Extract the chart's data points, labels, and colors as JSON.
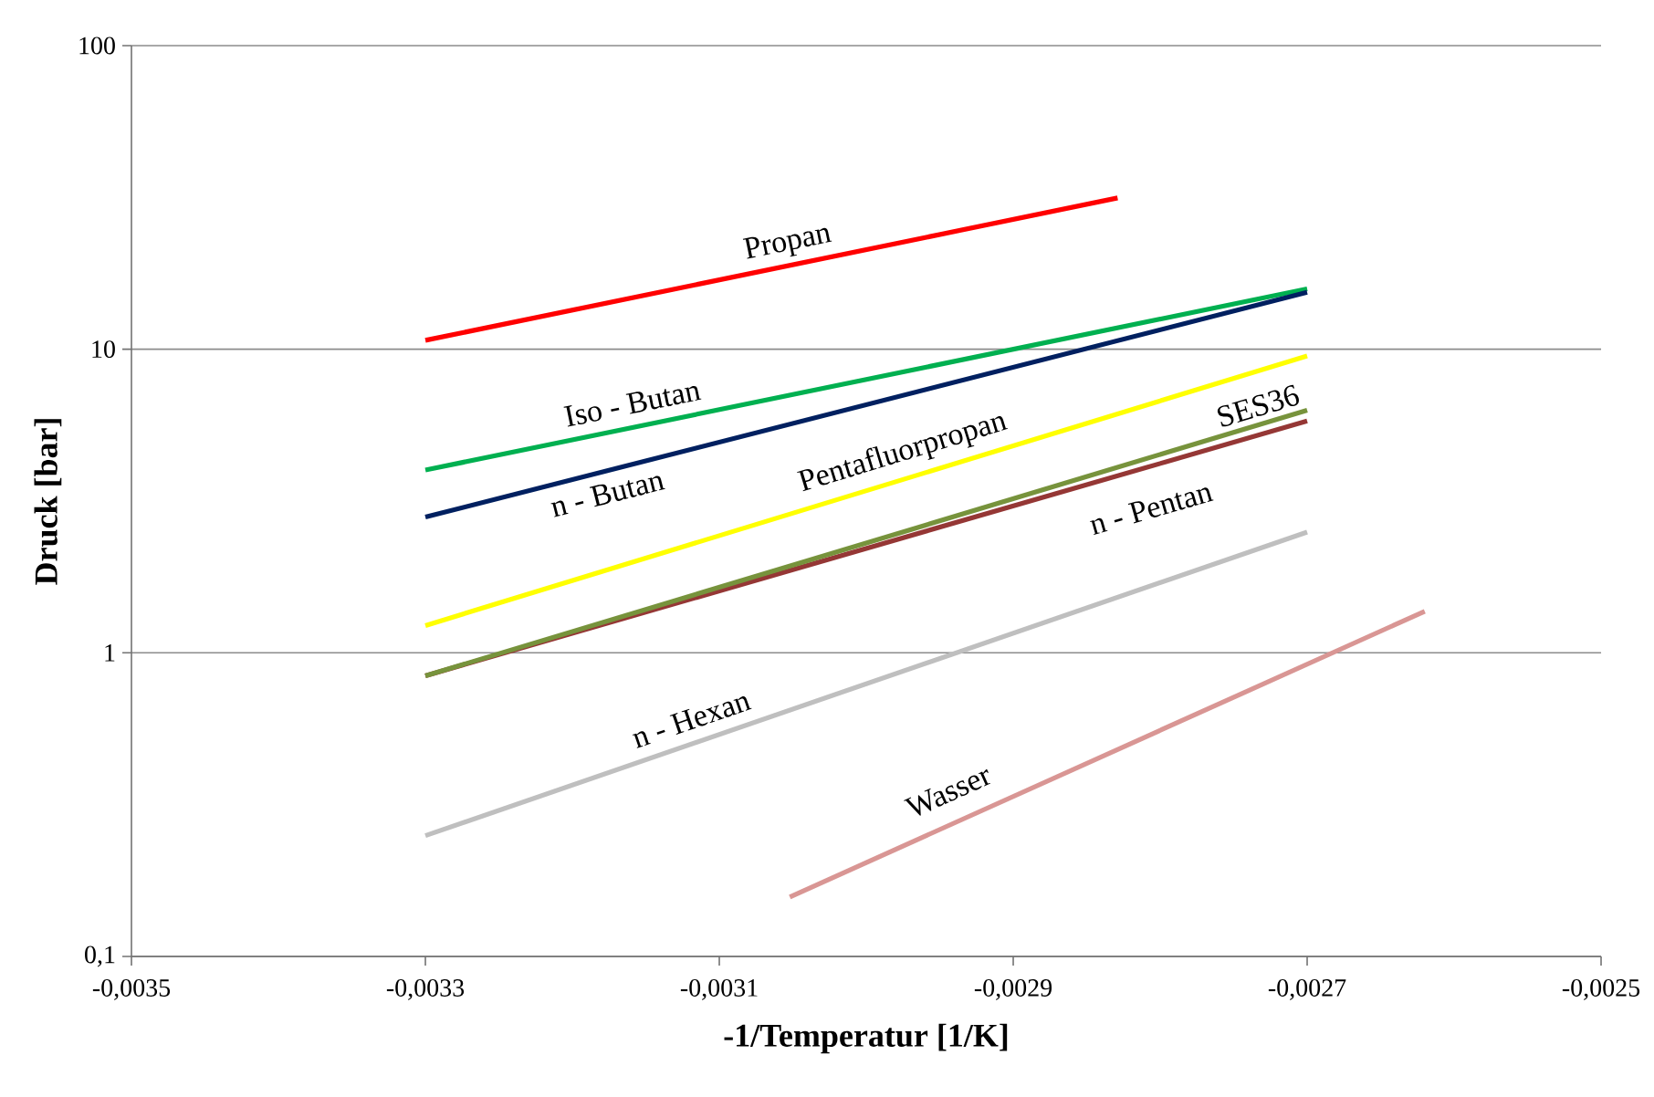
{
  "chart_data": {
    "type": "line",
    "xlabel": "-1/Temperatur [1/K]",
    "ylabel": "Druck [bar]",
    "log": "y",
    "grid": "y",
    "legend": false,
    "marker": "none",
    "line_style": "solid",
    "xlim": [
      -0.0035,
      -0.0025
    ],
    "xticks": [
      {
        "value": -0.0035,
        "label": "-0,0035"
      },
      {
        "value": -0.0033,
        "label": "-0,0033"
      },
      {
        "value": -0.0031,
        "label": "-0,0031"
      },
      {
        "value": -0.0029,
        "label": "-0,0029"
      },
      {
        "value": -0.0027,
        "label": "-0,0027"
      },
      {
        "value": -0.0025,
        "label": "-0,0025"
      }
    ],
    "ylim": [
      0.1,
      100
    ],
    "yticks": [
      {
        "value": 0.1,
        "label": "0,1"
      },
      1,
      10,
      100
    ],
    "series": [
      {
        "name": "Propan",
        "color": "#ff0000",
        "x": [
          -0.0033,
          -0.002829
        ],
        "values": [
          10.7,
          31.5
        ]
      },
      {
        "name": "Iso - Butan",
        "color": "#00b050",
        "x": [
          -0.0033,
          -0.0027
        ],
        "values": [
          4.0,
          15.8
        ]
      },
      {
        "name": "n - Butan",
        "color": "#002060",
        "x": [
          -0.0033,
          -0.0027
        ],
        "values": [
          2.8,
          15.4
        ]
      },
      {
        "name": "Pentafluorpropan",
        "color": "#ffff00",
        "x": [
          -0.0033,
          -0.0027
        ],
        "values": [
          1.23,
          9.5
        ]
      },
      {
        "name": "n - Pentan",
        "color": "#953735",
        "x": [
          -0.0033,
          -0.0027
        ],
        "values": [
          0.84,
          5.8
        ]
      },
      {
        "name": "SES36",
        "color": "#77933c",
        "x": [
          -0.0033,
          -0.0027
        ],
        "values": [
          0.84,
          6.3
        ]
      },
      {
        "name": "n - Hexan",
        "color": "#bfbfbf",
        "x": [
          -0.0033,
          -0.0027
        ],
        "values": [
          0.25,
          2.5
        ]
      },
      {
        "name": "Wasser",
        "color": "#d99694",
        "x": [
          -0.003052,
          -0.00262
        ],
        "values": [
          0.157,
          1.37
        ]
      }
    ]
  }
}
